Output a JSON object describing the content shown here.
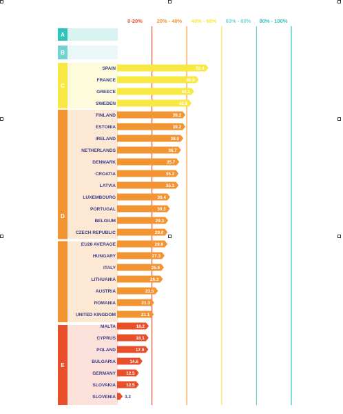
{
  "chart_data": {
    "type": "bar",
    "orientation": "horizontal",
    "bands": [
      {
        "label": "0-20%",
        "color": "#e8502b"
      },
      {
        "label": "20% - 40%",
        "color": "#f39433"
      },
      {
        "label": "40% - 60%",
        "color": "#f7e843"
      },
      {
        "label": "60% - 80%",
        "color": "#72d4d1"
      },
      {
        "label": "80% - 100%",
        "color": "#2ec4bb"
      }
    ],
    "grades": [
      {
        "label": "A",
        "color": "#2ec4bb",
        "light": "#d9f2f2"
      },
      {
        "label": "B",
        "color": "#72d4d1",
        "light": "#eaf7f7"
      },
      {
        "label": "C",
        "color": "#f7e843",
        "light": "#fdfbdc"
      },
      {
        "label": "D",
        "color": "#f39433",
        "light": "#fde9d3"
      },
      {
        "label": "E",
        "color": "#e8502b",
        "light": "#fbe1d9"
      }
    ],
    "categories": [
      "SPAIN",
      "FRANCE",
      "GREECE",
      "SWEDEN",
      "FINLAND",
      "ESTONIA",
      "IRELAND",
      "NETHERLANDS",
      "DENMARK",
      "CROATIA",
      "LATVIA",
      "LUXEMBOURG",
      "PORTUGAL",
      "BELGIUM",
      "CZECH REPUBLIC",
      "EU28 AVERAGE",
      "HUNGARY",
      "ITALY",
      "LITHUANIA",
      "AUSTRIA",
      "ROMANIA",
      "UNITED KINGDOM",
      "MALTA",
      "CYPRUS",
      "POLAND",
      "BULGARIA",
      "GERMANY",
      "SLOVAKIA",
      "SLOVENIA"
    ],
    "values": [
      52.4,
      46.9,
      44.2,
      42.8,
      39.2,
      39.2,
      38.0,
      36.7,
      35.7,
      35.3,
      35.3,
      30.4,
      30.3,
      29.3,
      29.0,
      28.9,
      27.3,
      26.9,
      26.3,
      23.5,
      21.3,
      21.1,
      18.2,
      18.1,
      17.9,
      14.6,
      12.5,
      12.5,
      3.2
    ],
    "value_labels": [
      "52.4",
      "46.9",
      "44.2",
      "42.8",
      "39.2",
      "39.2",
      "38.0",
      "36.7",
      "35.7",
      "35.3",
      "35.3",
      "30.4",
      "30.3",
      "29.3",
      "29.0",
      "28.9",
      "27.3",
      "26.9",
      "26.3",
      "23.5",
      "21.3",
      "21.1",
      "18.2",
      "18.1",
      "17.9",
      "14.6",
      "12.5",
      "12.5",
      "3.2"
    ],
    "grade_of_row": [
      "C",
      "C",
      "C",
      "C",
      "D",
      "D",
      "D",
      "D",
      "D",
      "D",
      "D",
      "D",
      "D",
      "D",
      "D",
      "D",
      "D",
      "D",
      "D",
      "D",
      "D",
      "D",
      "E",
      "E",
      "E",
      "E",
      "E",
      "E",
      "E"
    ],
    "xlim": [
      0,
      100
    ]
  }
}
